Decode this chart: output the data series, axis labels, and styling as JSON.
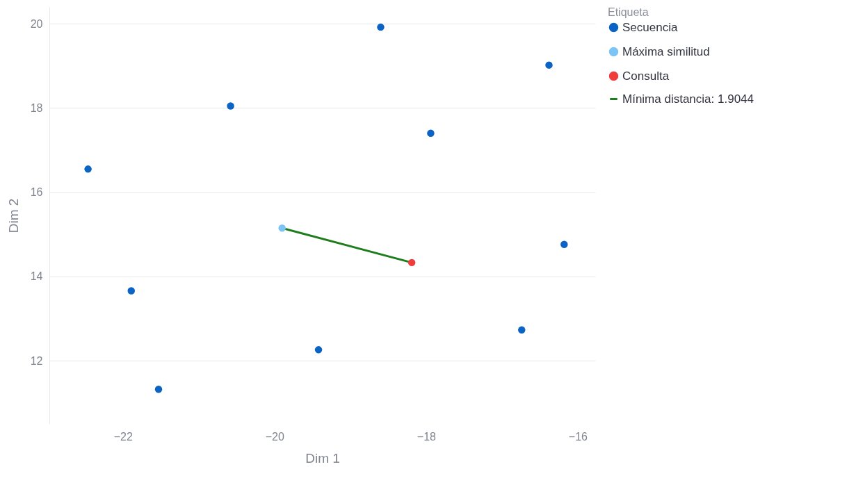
{
  "chart_data": {
    "type": "scatter",
    "xlabel": "Dim 1",
    "ylabel": "Dim 2",
    "legend_title": "Etiqueta",
    "xlim": [
      -22.97,
      -15.77
    ],
    "ylim": [
      10.5,
      20.4
    ],
    "xticks": [
      -22,
      -20,
      -18,
      -16
    ],
    "yticks": [
      12,
      14,
      16,
      18,
      20
    ],
    "grid": "y",
    "legend": "top right",
    "marker": "circle",
    "series": [
      {
        "name": "Secuencia",
        "color": "#0b63c4",
        "x": [
          -22.46,
          -21.89,
          -21.53,
          -20.58,
          -19.42,
          -18.6,
          -17.94,
          -16.74,
          -16.38,
          -16.18
        ],
        "values": [
          16.55,
          13.66,
          11.32,
          18.05,
          12.26,
          19.92,
          17.4,
          12.73,
          19.02,
          14.76
        ]
      },
      {
        "name": "Máxima similitud",
        "color": "#7cc4f4",
        "x": [
          -19.9
        ],
        "values": [
          15.15
        ]
      },
      {
        "name": "Consulta",
        "color": "#f03c3c",
        "x": [
          -18.19
        ],
        "values": [
          14.33
        ]
      },
      {
        "name": "Mínima distancia: 1.9044",
        "type": "line",
        "marker": "none",
        "color": "#1e7e1e",
        "x": [
          -19.9,
          -18.19
        ],
        "values": [
          15.15,
          14.33
        ]
      }
    ]
  }
}
